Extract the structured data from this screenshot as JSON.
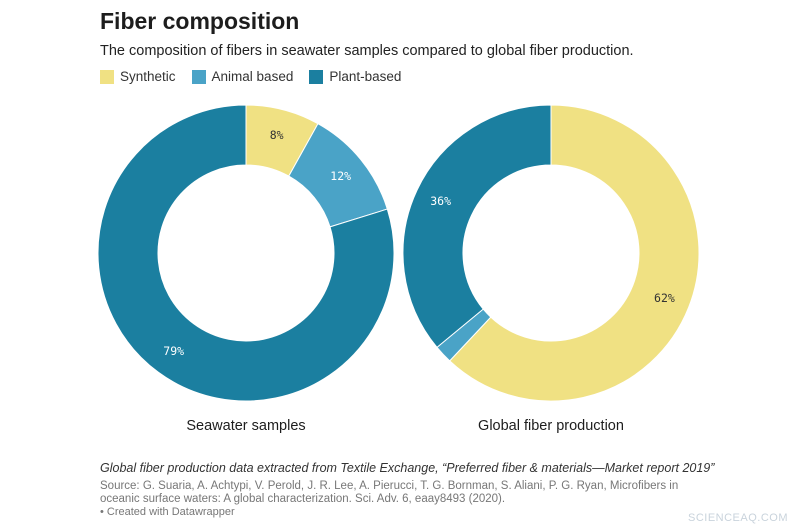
{
  "title": "Fiber composition",
  "subtitle": "The composition of fibers in seawater samples compared to global fiber production.",
  "legend": [
    {
      "label": "Synthetic",
      "color": "#f0e183"
    },
    {
      "label": "Animal based",
      "color": "#4aa3c7"
    },
    {
      "label": "Plant-based",
      "color": "#1b7fa0"
    }
  ],
  "chart_data": [
    {
      "type": "pie",
      "title": "Seawater samples",
      "slices": [
        {
          "label": "Synthetic",
          "value": 8,
          "display": "8%",
          "color": "#f0e183"
        },
        {
          "label": "Animal based",
          "value": 12,
          "display": "12%",
          "color": "#4aa3c7"
        },
        {
          "label": "Plant-based",
          "value": 79,
          "display": "79%",
          "color": "#1b7fa0"
        }
      ]
    },
    {
      "type": "pie",
      "title": "Global fiber production",
      "slices": [
        {
          "label": "Synthetic",
          "value": 62,
          "display": "62%",
          "color": "#f0e183"
        },
        {
          "label": "Animal based",
          "value": 2,
          "display": "",
          "color": "#4aa3c7"
        },
        {
          "label": "Plant-based",
          "value": 36,
          "display": "36%",
          "color": "#1b7fa0"
        }
      ]
    }
  ],
  "note": "Global fiber production data extracted from Textile Exchange, “Preferred fiber & materials—Market report 2019”",
  "source": "Source: G. Suaria, A. Achtypi, V. Perold, J. R. Lee, A. Pierucci, T. G. Bornman, S. Aliani, P. G. Ryan, Microfibers in oceanic surface waters: A global characterization. Sci. Adv. 6, eaay8493 (2020).",
  "credit": "• Created with Datawrapper",
  "watermark": "SCIENCEAQ.COM"
}
